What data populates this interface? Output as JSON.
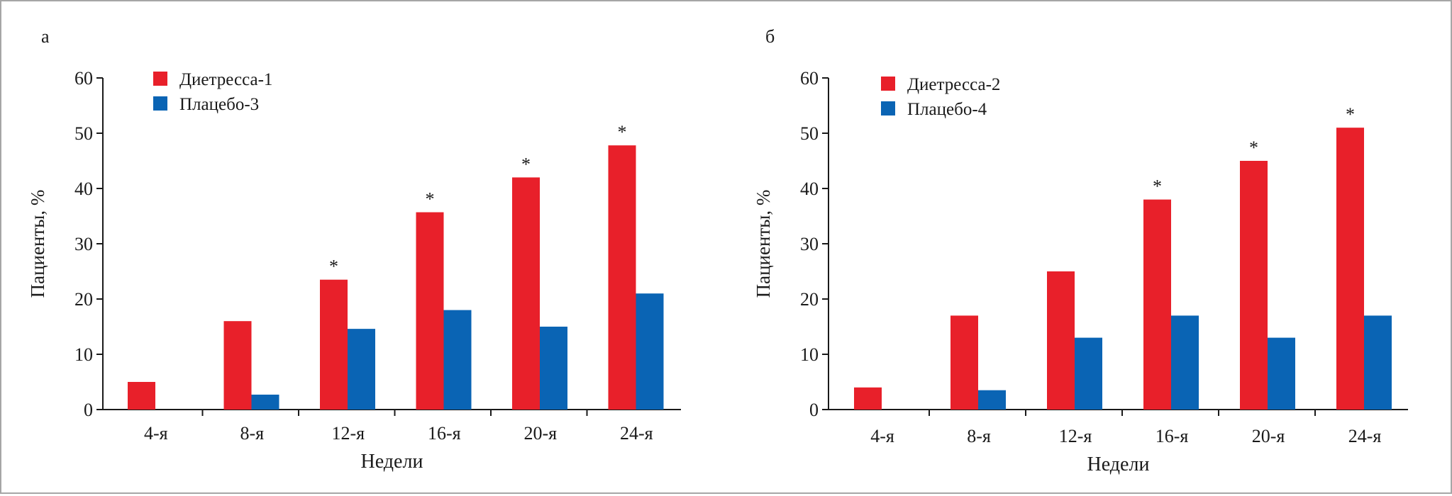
{
  "colors": {
    "series1": "#e8202a",
    "series2": "#0a64b4",
    "axis": "#1a1a1a"
  },
  "chart_data": [
    {
      "type": "bar",
      "panel_label": "а",
      "ylabel": "Пациенты, %",
      "xlabel": "Недели",
      "ylim": [
        0,
        60
      ],
      "yticks": [
        0,
        10,
        20,
        30,
        40,
        50,
        60
      ],
      "categories": [
        "4-я",
        "8-я",
        "12-я",
        "16-я",
        "20-я",
        "24-я"
      ],
      "series": [
        {
          "name": "Диетресса-1",
          "values": [
            5,
            16,
            23.5,
            35.7,
            42,
            47.8
          ]
        },
        {
          "name": "Плацебо-3",
          "values": [
            0,
            2.7,
            14.6,
            18,
            15,
            21
          ]
        }
      ],
      "significance": [
        "",
        "",
        "*",
        "*",
        "*",
        "*"
      ],
      "legend": "top-left",
      "grid": false
    },
    {
      "type": "bar",
      "panel_label": "б",
      "ylabel": "Пациенты, %",
      "xlabel": "Недели",
      "ylim": [
        0,
        60
      ],
      "yticks": [
        0,
        10,
        20,
        30,
        40,
        50,
        60
      ],
      "categories": [
        "4-я",
        "8-я",
        "12-я",
        "16-я",
        "20-я",
        "24-я"
      ],
      "series": [
        {
          "name": "Диетресса-2",
          "values": [
            4,
            17,
            25,
            38,
            45,
            51
          ]
        },
        {
          "name": "Плацебо-4",
          "values": [
            0,
            3.5,
            13,
            17,
            13,
            17
          ]
        }
      ],
      "significance": [
        "",
        "",
        "",
        "*",
        "*",
        "*"
      ],
      "legend": "top-left",
      "grid": false
    }
  ]
}
